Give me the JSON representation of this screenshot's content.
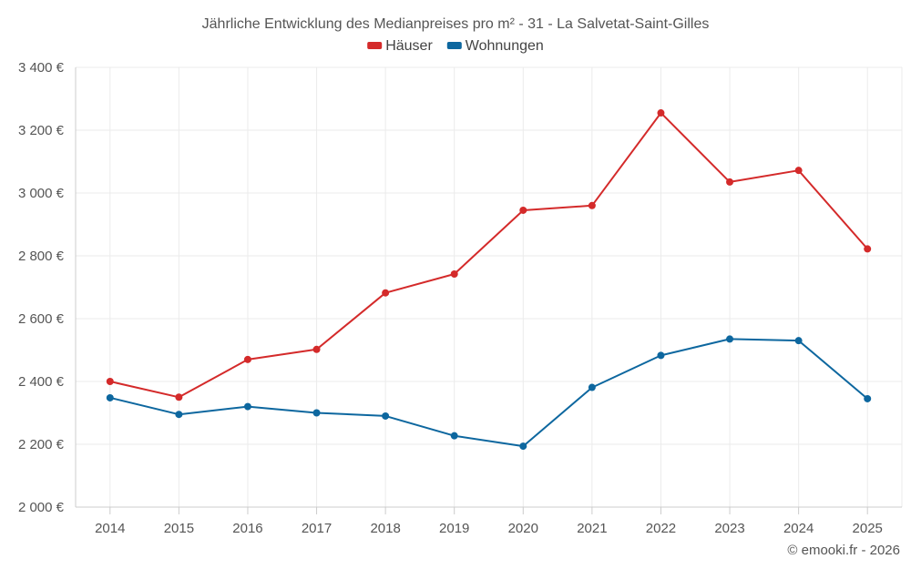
{
  "chart_data": {
    "type": "line",
    "title": "Jährliche Entwicklung des Medianpreises pro m² - 31 - La Salvetat-Saint-Gilles",
    "categories": [
      "2014",
      "2015",
      "2016",
      "2017",
      "2018",
      "2019",
      "2020",
      "2021",
      "2022",
      "2023",
      "2024",
      "2025"
    ],
    "series": [
      {
        "name": "Häuser",
        "color": "#d42a2a",
        "values": [
          2400,
          2350,
          2470,
          2502,
          2682,
          2742,
          2945,
          2960,
          3255,
          3035,
          3072,
          2822
        ]
      },
      {
        "name": "Wohnungen",
        "color": "#0d679f",
        "values": [
          2348,
          2295,
          2320,
          2300,
          2290,
          2227,
          2194,
          2381,
          2483,
          2535,
          2530,
          2345
        ]
      }
    ],
    "ylim": [
      2000,
      3400
    ],
    "yticks": [
      2000,
      2200,
      2400,
      2600,
      2800,
      3000,
      3200,
      3400
    ],
    "ytick_labels": [
      "2 000 €",
      "2 200 €",
      "2 400 €",
      "2 600 €",
      "2 800 €",
      "3 000 €",
      "3 200 €",
      "3 400 €"
    ],
    "xlabel": "",
    "ylabel": "",
    "grid": true,
    "legend_position": "top-center"
  },
  "credit": "© emooki.fr - 2026"
}
